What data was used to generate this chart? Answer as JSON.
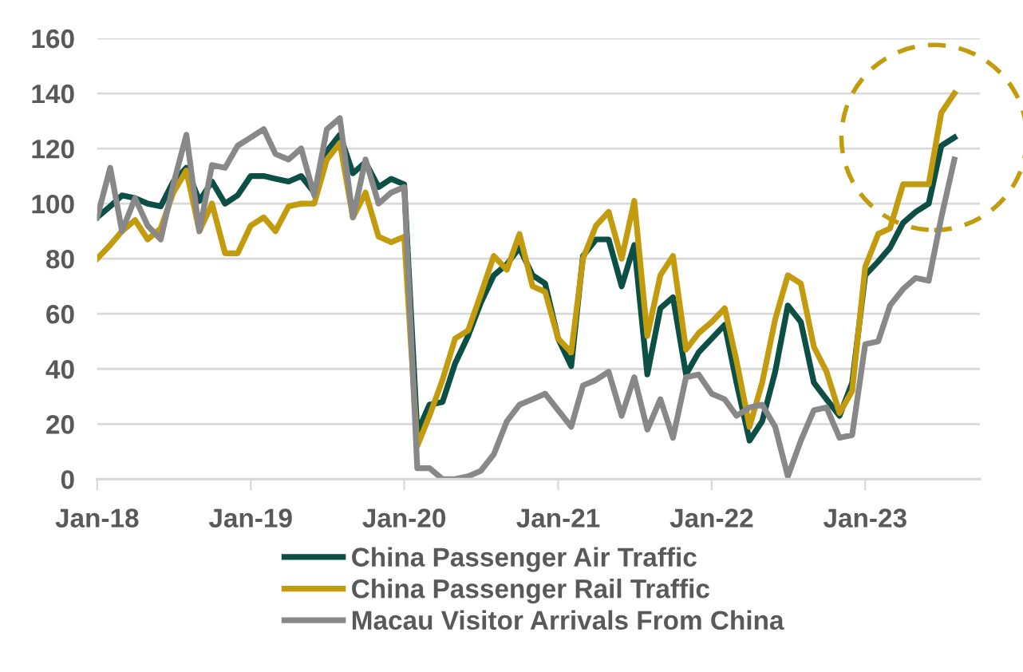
{
  "chart_data": {
    "type": "line",
    "x": [
      "2018-01",
      "2018-02",
      "2018-03",
      "2018-04",
      "2018-05",
      "2018-06",
      "2018-07",
      "2018-08",
      "2018-09",
      "2018-10",
      "2018-11",
      "2018-12",
      "2019-01",
      "2019-02",
      "2019-03",
      "2019-04",
      "2019-05",
      "2019-06",
      "2019-07",
      "2019-08",
      "2019-09",
      "2019-10",
      "2019-11",
      "2019-12",
      "2020-01",
      "2020-02",
      "2020-03",
      "2020-04",
      "2020-05",
      "2020-06",
      "2020-07",
      "2020-08",
      "2020-09",
      "2020-10",
      "2020-11",
      "2020-12",
      "2021-01",
      "2021-02",
      "2021-03",
      "2021-04",
      "2021-05",
      "2021-06",
      "2021-07",
      "2021-08",
      "2021-09",
      "2021-10",
      "2021-11",
      "2021-12",
      "2022-01",
      "2022-02",
      "2022-03",
      "2022-04",
      "2022-05",
      "2022-06",
      "2022-07",
      "2022-08",
      "2022-09",
      "2022-10",
      "2022-11",
      "2022-12",
      "2023-01",
      "2023-02",
      "2023-03",
      "2023-04",
      "2023-05",
      "2023-06",
      "2023-07",
      "2023-08"
    ],
    "series": [
      {
        "name": "China Passenger Air Traffic",
        "color": "#0b4f45",
        "values": [
          95,
          99,
          103,
          102,
          100,
          99,
          108,
          113,
          101,
          108,
          100,
          103,
          110,
          110,
          109,
          108,
          110,
          104,
          119,
          125,
          111,
          115,
          106,
          109,
          107,
          17,
          27,
          28,
          42,
          52,
          64,
          74,
          78,
          84,
          74,
          71,
          51,
          41,
          81,
          87,
          87,
          70,
          85,
          38,
          62,
          66,
          38,
          46,
          51,
          56,
          35,
          14,
          21,
          39,
          63,
          57,
          35,
          29,
          23,
          35,
          74,
          79,
          84,
          93,
          97,
          100,
          121,
          124
        ]
      },
      {
        "name": "China Passenger Rail Traffic",
        "color": "#c39b0e",
        "values": [
          80,
          85,
          90,
          94,
          87,
          91,
          104,
          112,
          90,
          100,
          82,
          82,
          92,
          95,
          90,
          99,
          100,
          100,
          116,
          122,
          95,
          104,
          88,
          86,
          88,
          12,
          23,
          36,
          51,
          54,
          67,
          81,
          76,
          89,
          70,
          68,
          51,
          46,
          80,
          92,
          97,
          80,
          101,
          52,
          74,
          81,
          47,
          53,
          57,
          62,
          43,
          19,
          35,
          58,
          74,
          71,
          48,
          39,
          24,
          32,
          77,
          89,
          91,
          107,
          107,
          107,
          133,
          140
        ]
      },
      {
        "name": "Macau Visitor Arrivals From China",
        "color": "#888888",
        "values": [
          95,
          113,
          90,
          102,
          92,
          87,
          107,
          125,
          90,
          114,
          113,
          121,
          124,
          127,
          118,
          116,
          120,
          103,
          127,
          131,
          95,
          116,
          100,
          104,
          106,
          4,
          4,
          0,
          0,
          1,
          3,
          9,
          21,
          27,
          29,
          31,
          25,
          19,
          34,
          36,
          39,
          23,
          37,
          18,
          29,
          15,
          37,
          38,
          31,
          29,
          23,
          26,
          27,
          19,
          1,
          14,
          25,
          26,
          15,
          16,
          49,
          50,
          63,
          69,
          73,
          72,
          95,
          116
        ]
      }
    ],
    "xlim": [
      "2018-01",
      "2023-10"
    ],
    "xticks": [
      {
        "value": "2018-01",
        "label": "Jan-18"
      },
      {
        "value": "2019-01",
        "label": "Jan-19"
      },
      {
        "value": "2020-01",
        "label": "Jan-20"
      },
      {
        "value": "2021-01",
        "label": "Jan-21"
      },
      {
        "value": "2022-01",
        "label": "Jan-22"
      },
      {
        "value": "2023-01",
        "label": "Jan-23"
      }
    ],
    "ylim": [
      0,
      160
    ],
    "yticks": [
      0,
      20,
      40,
      60,
      80,
      100,
      120,
      140,
      160
    ],
    "grid": "y",
    "legend": "bottom",
    "marker": "none",
    "line_style": "solid"
  }
}
